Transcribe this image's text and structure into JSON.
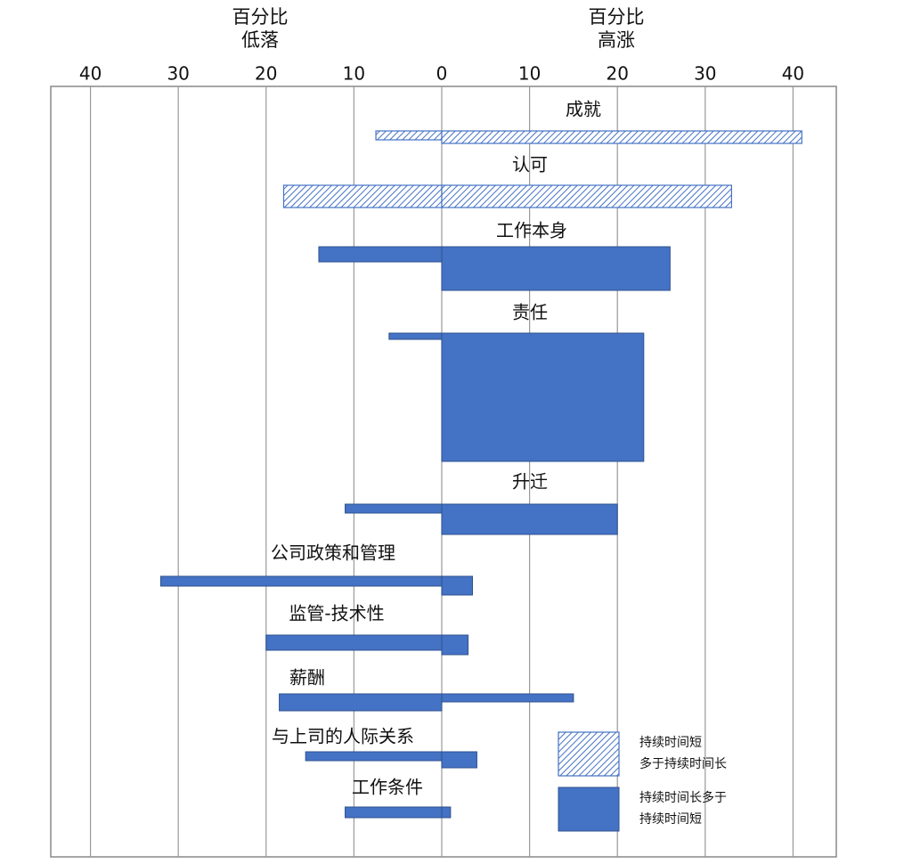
{
  "chart_data": {
    "type": "diverging_bar",
    "left_axis_title": "百分比\n低落",
    "right_axis_title": "百分比\n高涨",
    "categories": [
      "成就",
      "认可",
      "工作本身",
      "责任",
      "升迁",
      "公司政策和管理",
      "监管-技术性",
      "薪酬",
      "与上司的人际关系",
      "工作条件"
    ],
    "low": [
      -7.5,
      -18,
      -14,
      -6,
      -11,
      -32,
      -20,
      -18.5,
      -15.5,
      -11
    ],
    "high": [
      41,
      33,
      26,
      23,
      20,
      3.5,
      3,
      15,
      4,
      1
    ],
    "category_series": [
      0,
      0,
      1,
      1,
      1,
      1,
      1,
      1,
      1,
      1
    ],
    "series": [
      {
        "name": "持续时间短\n多于持续时间长",
        "pattern": "hatched",
        "color": "#4472c4"
      },
      {
        "name": "持续时间长多于\n持续时间短",
        "pattern": "solid",
        "color": "#4472c4"
      }
    ],
    "xlim": [
      -44,
      45
    ],
    "xticks": [
      {
        "value": -40,
        "label": "40"
      },
      {
        "value": -30,
        "label": "30"
      },
      {
        "value": -20,
        "label": "20"
      },
      {
        "value": -10,
        "label": "10"
      },
      0,
      10,
      20,
      30,
      40
    ],
    "grid": true
  }
}
